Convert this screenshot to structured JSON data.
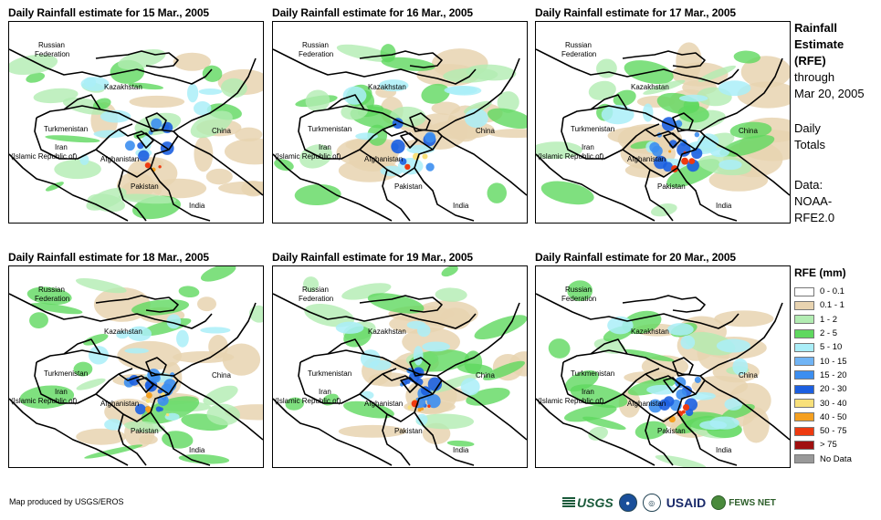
{
  "panels": [
    {
      "title": "Daily Rainfall estimate for 15 Mar., 2005"
    },
    {
      "title": "Daily Rainfall estimate for 16 Mar., 2005"
    },
    {
      "title": "Daily Rainfall estimate for 17 Mar., 2005"
    },
    {
      "title": "Daily Rainfall estimate for 18 Mar., 2005"
    },
    {
      "title": "Daily Rainfall estimate for 19 Mar., 2005"
    },
    {
      "title": "Daily Rainfall estimate for 20 Mar., 2005"
    }
  ],
  "countries": {
    "russia1": "Russian",
    "russia2": "Federation",
    "kazakhstan": "Kazakhstan",
    "turkmenistan": "Turkmenistan",
    "iran1": "Iran",
    "iran2": "(Islamic Republic of)",
    "afghanistan": "Afghanistan",
    "pakistan": "Pakistan",
    "china": "China",
    "india": "India"
  },
  "side_info": {
    "heading1": "Rainfall",
    "heading2": "Estimate",
    "heading3": "(RFE)",
    "through": "through",
    "date": "Mar 20, 2005",
    "daily1": "Daily",
    "daily2": "Totals",
    "data1": "Data:",
    "data2": "NOAA-",
    "data3": "RFE2.0"
  },
  "legend": {
    "title": "RFE (mm)",
    "items": [
      {
        "label": "0 - 0.1",
        "color": "#ffffff"
      },
      {
        "label": "0.1 - 1",
        "color": "#e8d3b0"
      },
      {
        "label": "1 - 2",
        "color": "#b2ecb2"
      },
      {
        "label": "2 - 5",
        "color": "#5fd85f"
      },
      {
        "label": "5 - 10",
        "color": "#aaeef8"
      },
      {
        "label": "10 - 15",
        "color": "#70b4f5"
      },
      {
        "label": "15 - 20",
        "color": "#3c8ef0"
      },
      {
        "label": "20 - 30",
        "color": "#1c5fe0"
      },
      {
        "label": "30 - 40",
        "color": "#f8e07a"
      },
      {
        "label": "40 - 50",
        "color": "#f5a020"
      },
      {
        "label": "50 - 75",
        "color": "#ee3a10"
      },
      {
        "label": "> 75",
        "color": "#a01010"
      },
      {
        "label": "No Data",
        "color": "#999999"
      }
    ]
  },
  "credit": "Map produced by USGS/EROS",
  "logos": {
    "usgs": "USGS",
    "noaa": "NOAA",
    "usaid": "USAID",
    "fewsnet": "FEWS NET"
  }
}
